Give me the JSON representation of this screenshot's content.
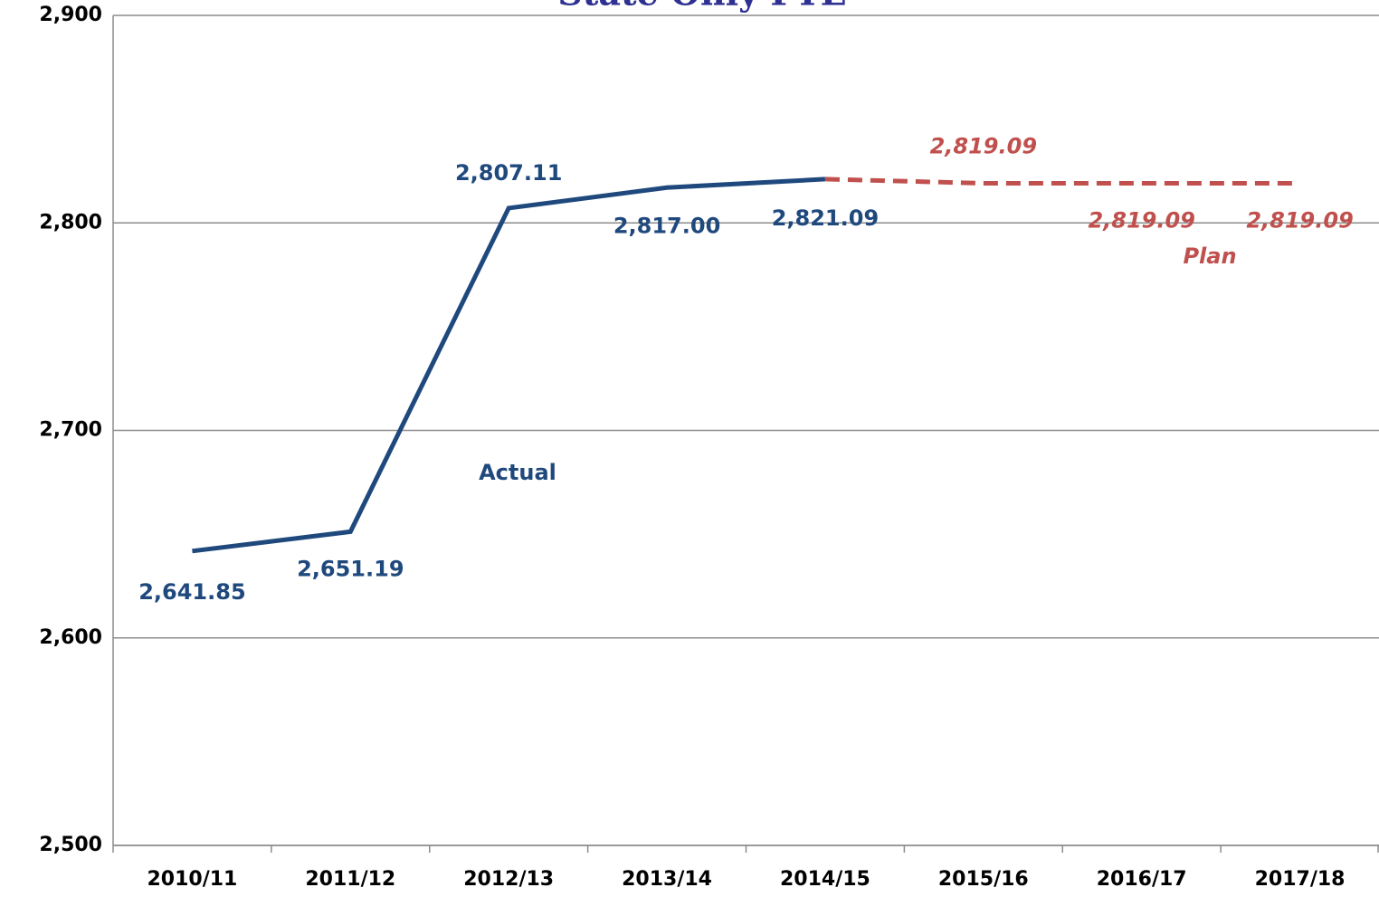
{
  "chart_data": {
    "type": "line",
    "title": "State Only FTE",
    "categories": [
      "2010/11",
      "2011/12",
      "2012/13",
      "2013/14",
      "2014/15",
      "2015/16",
      "2016/17",
      "2017/18"
    ],
    "series": [
      {
        "name": "Actual",
        "color": "#1f497d",
        "dashed": false,
        "values": [
          2641.85,
          2651.19,
          2807.11,
          2817.0,
          2821.09,
          null,
          null,
          null
        ],
        "value_labels": [
          "2,641.85",
          "2,651.19",
          "2,807.11",
          "2,817.00",
          "2,821.09",
          null,
          null,
          null
        ]
      },
      {
        "name": "Plan",
        "color": "#c0504d",
        "dashed": true,
        "values": [
          null,
          null,
          null,
          null,
          2821.09,
          2819.09,
          2819.09,
          2819.09
        ],
        "value_labels": [
          null,
          null,
          null,
          null,
          null,
          "2,819.09",
          "2,819.09",
          "2,819.09"
        ]
      }
    ],
    "ylim": [
      2500,
      2900
    ],
    "yticks": [
      {
        "value": 2500,
        "label": "2,500"
      },
      {
        "value": 2600,
        "label": "2,600"
      },
      {
        "value": 2700,
        "label": "2,700"
      },
      {
        "value": 2800,
        "label": "2,800"
      },
      {
        "value": 2900,
        "label": "2,900"
      }
    ],
    "grid": true
  }
}
